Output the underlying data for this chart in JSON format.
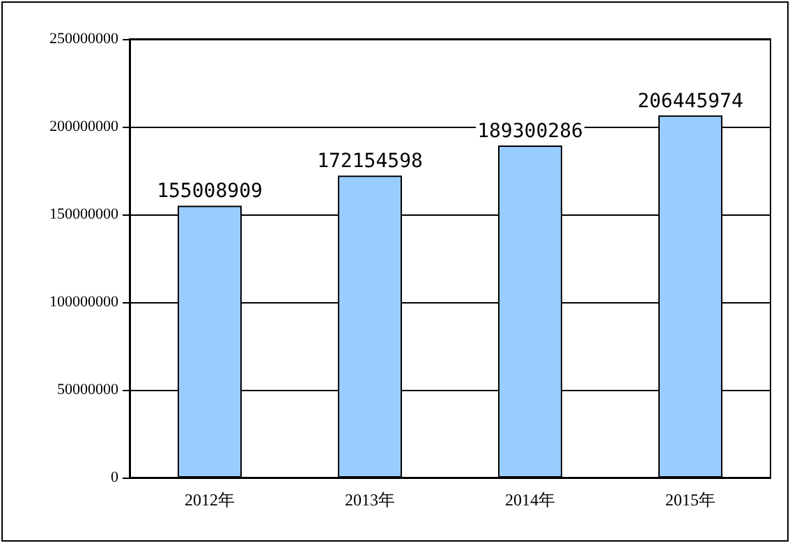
{
  "chart_data": {
    "type": "bar",
    "categories": [
      "2012年",
      "2013年",
      "2014年",
      "2015年"
    ],
    "values": [
      155008909,
      172154598,
      189300286,
      206445974
    ],
    "color": "#99ccff",
    "ylim": [
      0,
      250000000
    ],
    "yticks": [
      0,
      50000000,
      100000000,
      150000000,
      200000000,
      250000000
    ],
    "grid": "y",
    "data_labels": true
  }
}
